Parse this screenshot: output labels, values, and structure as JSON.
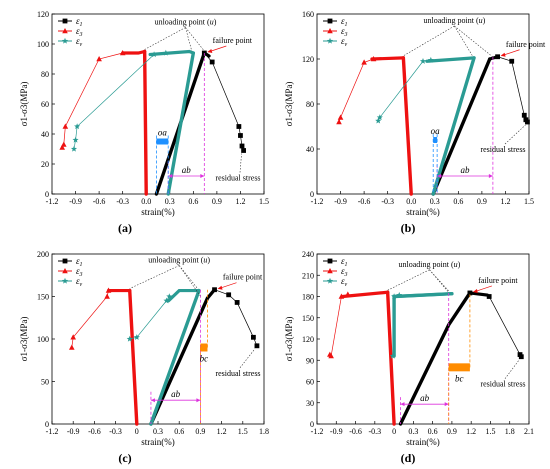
{
  "colors": {
    "e1": "#000000",
    "e3": "#ee1111",
    "ev": "#2a9b93",
    "oa": "#1e90ff",
    "bc": "#ff8c00",
    "ab": "#dd33dd",
    "guide": "#333333"
  },
  "legend": [
    {
      "key": "e1",
      "sym": "ε",
      "sub": "1",
      "marker": "square"
    },
    {
      "key": "e3",
      "sym": "ε",
      "sub": "3",
      "marker": "triangle"
    },
    {
      "key": "ev",
      "sym": "ε",
      "sub": "v",
      "marker": "star"
    }
  ],
  "chart_data": [
    {
      "type": "line",
      "panel": "(a)",
      "xlabel": "strain(%)",
      "ylabel": "σ1-σ3(MPa)",
      "xlim": [
        -1.2,
        1.5
      ],
      "ylim": [
        0,
        120
      ],
      "xticks": [
        "-1.2",
        "-0.9",
        "-0.6",
        "-0.3",
        "0.0",
        "0.3",
        "0.6",
        "0.9",
        "1.2",
        "1.5"
      ],
      "yticks": [
        "0",
        "20",
        "40",
        "60",
        "80",
        "100",
        "120"
      ],
      "series": {
        "e1": {
          "unload": [
            [
              0.13,
              0
            ],
            [
              0.74,
              94
            ]
          ],
          "peak": [
            [
              0.74,
              94
            ],
            [
              0.8,
              92
            ]
          ],
          "markers": [
            [
              0.74,
              94
            ],
            [
              0.84,
              88
            ],
            [
              1.18,
              45
            ],
            [
              1.2,
              39
            ],
            [
              1.22,
              32
            ],
            [
              1.24,
              29
            ]
          ]
        },
        "e3": {
          "unload": [
            [
              -0.02,
              95
            ],
            [
              0.0,
              0
            ]
          ],
          "peak": [
            [
              -0.3,
              94
            ],
            [
              -0.1,
              94
            ],
            [
              -0.02,
              95
            ]
          ],
          "markers": [
            [
              -1.07,
              31
            ],
            [
              -1.05,
              33
            ],
            [
              -1.03,
              45
            ],
            [
              -0.6,
              90
            ],
            [
              -0.3,
              94
            ]
          ]
        },
        "ev": {
          "unload": [
            [
              0.28,
              0
            ],
            [
              0.6,
              94
            ]
          ],
          "peak": [
            [
              0.05,
              93
            ],
            [
              0.55,
              95
            ],
            [
              0.6,
              94
            ]
          ],
          "markers": [
            [
              -0.92,
              30
            ],
            [
              -0.9,
              36
            ],
            [
              -0.88,
              45
            ],
            [
              0.1,
              93
            ],
            [
              0.25,
              94
            ]
          ]
        }
      },
      "unload_x": [
        0.74,
        0.58,
        -0.02
      ],
      "oa": {
        "x1": 0.13,
        "x2": 0.28,
        "y": 35,
        "label": "oa"
      },
      "ab": {
        "x1": 0.28,
        "x2": 0.74,
        "y": 12,
        "label": "ab"
      },
      "unloading_label": "unloading point (",
      "unloading_var": "u",
      "failure_label": "failure point",
      "residual_label": "residual stress",
      "failure_xy": [
        0.74,
        94
      ],
      "residual_xy": [
        1.24,
        29
      ],
      "unloading_text_xy": [
        0.5,
        113
      ]
    },
    {
      "type": "line",
      "panel": "(b)",
      "xlabel": "strain(%)",
      "ylabel": "σ1-σ3(MPa)",
      "xlim": [
        -1.2,
        1.5
      ],
      "ylim": [
        0,
        160
      ],
      "xticks": [
        "-1.2",
        "-0.9",
        "-0.6",
        "-0.3",
        "0.0",
        "0.3",
        "0.6",
        "0.9",
        "1.2",
        "1.5"
      ],
      "yticks": [
        "0",
        "40",
        "80",
        "120",
        "160"
      ],
      "series": {
        "e1": {
          "unload": [
            [
              0.28,
              0
            ],
            [
              1.0,
              120
            ]
          ],
          "peak": [
            [
              1.0,
              120
            ],
            [
              1.1,
              122
            ]
          ],
          "markers": [
            [
              1.1,
              122
            ],
            [
              1.28,
              118
            ],
            [
              1.44,
              70
            ],
            [
              1.46,
              66
            ],
            [
              1.48,
              64
            ]
          ]
        },
        "e3": {
          "unload": [
            [
              -0.1,
              121
            ],
            [
              0.0,
              0
            ]
          ],
          "peak": [
            [
              -0.5,
              120
            ],
            [
              -0.1,
              121
            ]
          ],
          "markers": [
            [
              -0.92,
              64
            ],
            [
              -0.9,
              68
            ],
            [
              -0.6,
              117
            ],
            [
              -0.48,
              120
            ]
          ]
        },
        "ev": {
          "unload": [
            [
              0.28,
              0
            ],
            [
              0.8,
              121
            ]
          ],
          "peak": [
            [
              0.2,
              118
            ],
            [
              0.6,
              120
            ],
            [
              0.8,
              121
            ]
          ],
          "markers": [
            [
              -0.42,
              65
            ],
            [
              -0.4,
              68
            ],
            [
              0.15,
              118
            ],
            [
              0.25,
              119
            ]
          ]
        }
      },
      "unload_x": [
        1.04,
        0.78,
        -0.1
      ],
      "oa": {
        "x1": 0.28,
        "x2": 0.33,
        "y": 48,
        "label": "oa"
      },
      "ab": {
        "x1": 0.33,
        "x2": 1.04,
        "y": 16,
        "label": "ab"
      },
      "unloading_label": "unloading point (",
      "unloading_var": "u",
      "failure_label": "failure point",
      "residual_label": "residual stress",
      "failure_xy": [
        1.1,
        122
      ],
      "residual_xy": [
        1.48,
        64
      ],
      "unloading_text_xy": [
        0.55,
        152
      ]
    },
    {
      "type": "line",
      "panel": "(c)",
      "xlabel": "strain(%)",
      "ylabel": "σ1-σ3(MPa)",
      "xlim": [
        -1.2,
        1.8
      ],
      "ylim": [
        0,
        200
      ],
      "xticks": [
        "-1.2",
        "-0.9",
        "-0.6",
        "-0.3",
        "0",
        "0.3",
        "0.6",
        "0.9",
        "1.2",
        "1.5",
        "1.8"
      ],
      "yticks": [
        "0",
        "50",
        "100",
        "150",
        "200"
      ],
      "series": {
        "e1": {
          "unload": [
            [
              0.2,
              0
            ],
            [
              1.0,
              148
            ]
          ],
          "peak": [
            [
              1.0,
              148
            ],
            [
              1.1,
              158
            ]
          ],
          "markers": [
            [
              1.1,
              158
            ],
            [
              1.3,
              152
            ],
            [
              1.42,
              143
            ],
            [
              1.65,
              102
            ],
            [
              1.7,
              92
            ]
          ]
        },
        "e3": {
          "unload": [
            [
              -0.1,
              157
            ],
            [
              0.0,
              0
            ]
          ],
          "peak": [
            [
              -0.4,
              157
            ],
            [
              -0.1,
              157
            ]
          ],
          "markers": [
            [
              -0.92,
              90
            ],
            [
              -0.9,
              102
            ],
            [
              -0.42,
              150
            ],
            [
              -0.4,
              157
            ]
          ]
        },
        "ev": {
          "unload": [
            [
              0.2,
              0
            ],
            [
              0.88,
              157
            ]
          ],
          "peak": [
            [
              0.45,
              145
            ],
            [
              0.6,
              157
            ],
            [
              0.88,
              157
            ]
          ],
          "markers": [
            [
              -0.1,
              100
            ],
            [
              0.0,
              102
            ],
            [
              0.42,
              145
            ],
            [
              0.46,
              150
            ]
          ]
        }
      },
      "unload_x": [
        0.9,
        0.86,
        -0.1
      ],
      "bc": {
        "x1": 0.9,
        "x2": 1.0,
        "y": 90,
        "label": "bc"
      },
      "ab": {
        "x1": 0.2,
        "x2": 0.9,
        "y": 28,
        "label": "ab"
      },
      "unloading_label": "unloading point (",
      "unloading_var": "u",
      "failure_label": "failure point",
      "residual_label": "residual stress",
      "failure_xy": [
        1.1,
        158
      ],
      "residual_xy": [
        1.7,
        92
      ],
      "unloading_text_xy": [
        0.6,
        190
      ]
    },
    {
      "type": "line",
      "panel": "(d)",
      "xlabel": "strain(%)",
      "ylabel": "σ1-σ3(MPa)",
      "xlim": [
        -1.2,
        2.1
      ],
      "ylim": [
        0,
        240
      ],
      "xticks": [
        "-1.2",
        "-0.9",
        "-0.6",
        "-0.3",
        "0",
        "0.3",
        "0.6",
        "0.9",
        "1.2",
        "1.5",
        "1.8",
        "2.1"
      ],
      "yticks": [
        "0",
        "30",
        "60",
        "90",
        "120",
        "150",
        "180",
        "210",
        "240"
      ],
      "series": {
        "e1": {
          "unload": [
            [
              0.1,
              0
            ],
            [
              0.85,
              140
            ],
            [
              1.18,
              185
            ]
          ],
          "peak": [
            [
              1.18,
              185
            ],
            [
              1.45,
              182
            ]
          ],
          "markers": [
            [
              1.18,
              185
            ],
            [
              1.48,
              180
            ],
            [
              1.96,
              98
            ],
            [
              1.98,
              95
            ]
          ]
        },
        "e3": {
          "unload": [
            [
              -0.1,
              186
            ],
            [
              0.0,
              0
            ]
          ],
          "peak": [
            [
              -0.8,
              180
            ],
            [
              -0.1,
              186
            ]
          ],
          "markers": [
            [
              -1.0,
              98
            ],
            [
              -0.98,
              96
            ],
            [
              -0.82,
              180
            ],
            [
              -0.72,
              183
            ]
          ]
        },
        "ev": {
          "unload": [
            [
              0.0,
              96
            ],
            [
              0.0,
              180
            ],
            [
              0.9,
              184
            ]
          ],
          "peak": [
            [
              0.0,
              180
            ],
            [
              0.9,
              184
            ]
          ],
          "markers": [
            [
              -0.02,
              96
            ],
            [
              0.0,
              180
            ],
            [
              0.08,
              182
            ]
          ]
        }
      },
      "unload_x": [
        0.85,
        0.84,
        -0.1
      ],
      "bc": {
        "x1": 0.85,
        "x2": 1.18,
        "y": 80,
        "label": "bc"
      },
      "ab": {
        "x1": 0.1,
        "x2": 0.85,
        "y": 28,
        "label": "ab"
      },
      "unloading_label": "unloading point (",
      "unloading_var": "u",
      "failure_label": "failure point",
      "residual_label": "residual stress",
      "failure_xy": [
        1.18,
        185
      ],
      "residual_xy": [
        1.98,
        95
      ],
      "unloading_text_xy": [
        0.55,
        222
      ]
    }
  ]
}
